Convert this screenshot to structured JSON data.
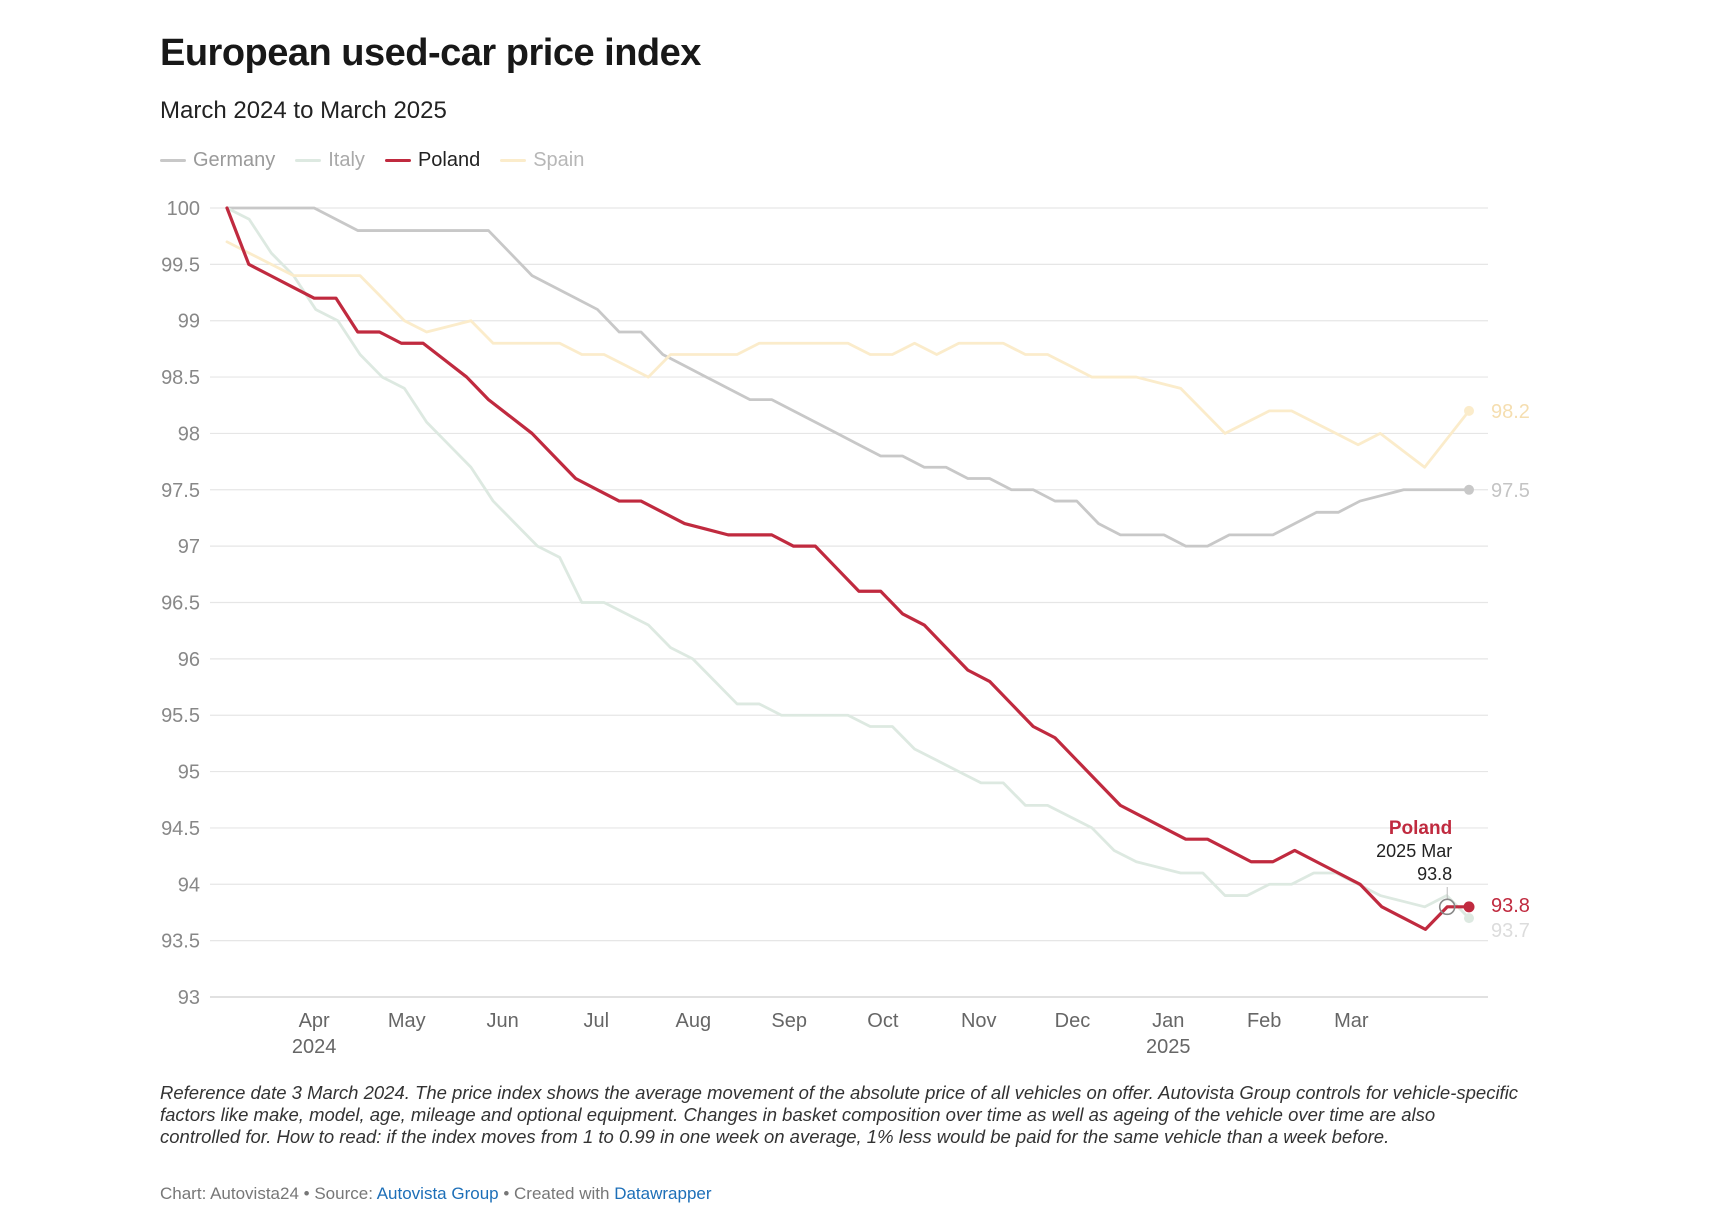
{
  "title": "European used-car price index",
  "subtitle": "March 2024 to March 2025",
  "legend": [
    {
      "name": "Germany",
      "color": "#c8c8c8",
      "text_color": "#9a9a9a"
    },
    {
      "name": "Italy",
      "color": "#dde9e1",
      "text_color": "#a9a9a9"
    },
    {
      "name": "Poland",
      "color": "#c02a3f",
      "text_color": "#222222"
    },
    {
      "name": "Spain",
      "color": "#fbeccb",
      "text_color": "#b7b7b7"
    }
  ],
  "chart_data": {
    "type": "line",
    "title": "European used-car price index",
    "subtitle": "March 2024 to March 2025",
    "ylim": [
      93,
      100
    ],
    "yticks": [
      "100",
      "99.5",
      "99",
      "98.5",
      "98",
      "97.5",
      "97",
      "96.5",
      "96",
      "95.5",
      "95",
      "94.5",
      "94",
      "93.5",
      "93"
    ],
    "xticks": [
      {
        "label": "Apr",
        "year": "2024",
        "week": 4
      },
      {
        "label": "May",
        "year": "",
        "week": 8.25
      },
      {
        "label": "Jun",
        "year": "",
        "week": 12.65
      },
      {
        "label": "Jul",
        "year": "",
        "week": 16.95
      },
      {
        "label": "Aug",
        "year": "",
        "week": 21.4
      },
      {
        "label": "Sep",
        "year": "",
        "week": 25.8
      },
      {
        "label": "Oct",
        "year": "",
        "week": 30.1
      },
      {
        "label": "Nov",
        "year": "",
        "week": 34.5
      },
      {
        "label": "Dec",
        "year": "",
        "week": 38.8
      },
      {
        "label": "Jan",
        "year": "2025",
        "week": 43.2
      },
      {
        "label": "Feb",
        "year": "",
        "week": 47.6
      },
      {
        "label": "Mar",
        "year": "",
        "week": 51.6
      }
    ],
    "series": [
      {
        "name": "Germany",
        "color": "#c8c8c8",
        "end_label": "97.5",
        "end_label_color": "#c4c4c4",
        "values": [
          100,
          100,
          100,
          100,
          100,
          99.9,
          99.8,
          99.8,
          99.8,
          99.8,
          99.8,
          99.8,
          99.8,
          99.6,
          99.4,
          99.3,
          99.2,
          99.1,
          98.9,
          98.9,
          98.7,
          98.6,
          98.5,
          98.4,
          98.3,
          98.3,
          98.2,
          98.1,
          98.0,
          97.9,
          97.8,
          97.8,
          97.7,
          97.7,
          97.6,
          97.6,
          97.5,
          97.5,
          97.4,
          97.4,
          97.2,
          97.1,
          97.1,
          97.1,
          97.0,
          97.0,
          97.1,
          97.1,
          97.1,
          97.2,
          97.3,
          97.3,
          97.4,
          97.45,
          97.5,
          97.5,
          97.5,
          97.5
        ]
      },
      {
        "name": "Italy",
        "color": "#dde9e1",
        "end_label": "93.7",
        "end_label_color": "#dcdcdc",
        "values": [
          100,
          99.9,
          99.6,
          99.4,
          99.1,
          99.0,
          98.7,
          98.5,
          98.4,
          98.1,
          97.9,
          97.7,
          97.4,
          97.2,
          97.0,
          96.9,
          96.5,
          96.5,
          96.4,
          96.3,
          96.1,
          96.0,
          95.8,
          95.6,
          95.6,
          95.5,
          95.5,
          95.5,
          95.5,
          95.4,
          95.4,
          95.2,
          95.1,
          95.0,
          94.9,
          94.9,
          94.7,
          94.7,
          94.6,
          94.5,
          94.3,
          94.2,
          94.15,
          94.1,
          94.1,
          93.9,
          93.9,
          94.0,
          94.0,
          94.1,
          94.1,
          94.0,
          93.9,
          93.85,
          93.8,
          93.9,
          93.7
        ]
      },
      {
        "name": "Spain",
        "color": "#fbeccb",
        "end_label": "98.2",
        "end_label_color": "#f5deb0",
        "values": [
          99.7,
          99.6,
          99.5,
          99.4,
          99.4,
          99.4,
          99.4,
          99.2,
          99.0,
          98.9,
          98.95,
          99.0,
          98.8,
          98.8,
          98.8,
          98.8,
          98.7,
          98.7,
          98.6,
          98.5,
          98.7,
          98.7,
          98.7,
          98.7,
          98.8,
          98.8,
          98.8,
          98.8,
          98.8,
          98.7,
          98.7,
          98.8,
          98.7,
          98.8,
          98.8,
          98.8,
          98.7,
          98.7,
          98.6,
          98.5,
          98.5,
          98.5,
          98.45,
          98.4,
          98.2,
          98.0,
          98.1,
          98.2,
          98.2,
          98.1,
          98.0,
          97.9,
          98.0,
          97.85,
          97.7,
          97.95,
          98.2
        ]
      },
      {
        "name": "Poland",
        "color": "#c02a3f",
        "end_label": "93.8",
        "end_label_color": "#c02a3f",
        "values": [
          100,
          99.5,
          99.4,
          99.3,
          99.2,
          99.2,
          98.9,
          98.9,
          98.8,
          98.8,
          98.65,
          98.5,
          98.3,
          98.15,
          98.0,
          97.8,
          97.6,
          97.5,
          97.4,
          97.4,
          97.3,
          97.2,
          97.15,
          97.1,
          97.1,
          97.1,
          97.0,
          97.0,
          96.8,
          96.6,
          96.6,
          96.4,
          96.3,
          96.1,
          95.9,
          95.8,
          95.6,
          95.4,
          95.3,
          95.1,
          94.9,
          94.7,
          94.6,
          94.5,
          94.4,
          94.4,
          94.3,
          94.2,
          94.2,
          94.3,
          94.2,
          94.1,
          94.0,
          93.8,
          93.7,
          93.6,
          93.8,
          93.8
        ]
      }
    ],
    "tooltip": {
      "series": "Poland",
      "date": "2025 Mar",
      "value": "93.8"
    }
  },
  "notes": "Reference date 3 March 2024. The price index shows the average movement of the absolute price of all vehicles on offer. Autovista Group controls for vehicle-specific factors like make, model, age, mileage and optional equipment. Changes in basket composition over time as well as ageing of the vehicle over time are also controlled for. How to read: if the index moves from 1 to 0.99 in one week on average, 1% less would be paid for the same vehicle than a week before.",
  "credits": {
    "chart": "Chart: Autovista24",
    "source_prefix": "Source: ",
    "source": "Autovista Group",
    "created_prefix": "Created with ",
    "created": "Datawrapper",
    "sep": " • "
  }
}
